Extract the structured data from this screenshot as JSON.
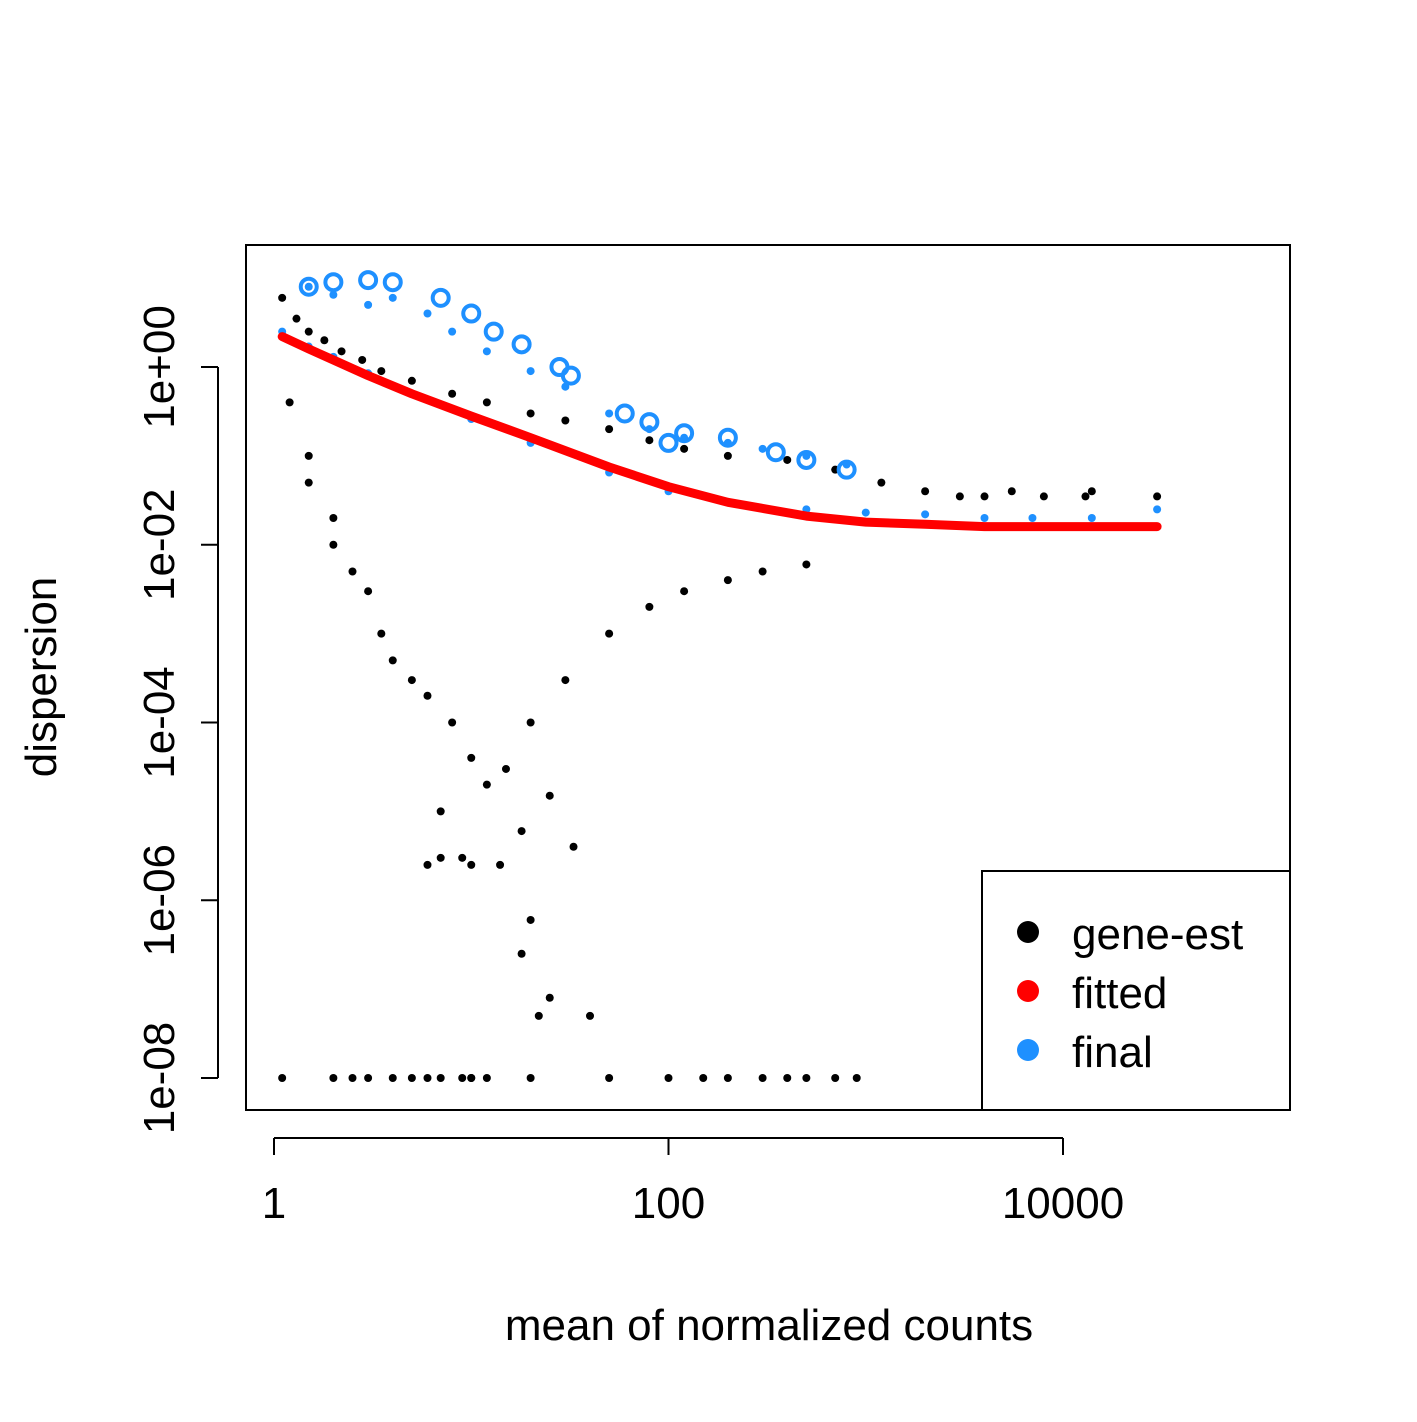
{
  "chart_data": {
    "type": "scatter",
    "title": "",
    "xlabel": "mean of normalized counts",
    "ylabel": "dispersion",
    "xscale": "log10",
    "yscale": "log10",
    "xlim": [
      0.7,
      100000
    ],
    "ylim": [
      2e-09,
      30
    ],
    "x_ticks": [
      {
        "value": 1,
        "label": "1"
      },
      {
        "value": 100,
        "label": "100"
      },
      {
        "value": 10000,
        "label": "10000"
      }
    ],
    "y_ticks": [
      {
        "value": 1e-08,
        "label": "1e-08"
      },
      {
        "value": 1e-06,
        "label": "1e-06"
      },
      {
        "value": 0.0001,
        "label": "1e-04"
      },
      {
        "value": 0.01,
        "label": "1e-02"
      },
      {
        "value": 1,
        "label": "1e+00"
      }
    ],
    "grid": false,
    "legend": {
      "position": "bottom-right",
      "entries": [
        {
          "label": "gene-est",
          "color": "#000000"
        },
        {
          "label": "fitted",
          "color": "#ff0000"
        },
        {
          "label": "final",
          "color": "#1e90ff"
        }
      ]
    },
    "series": [
      {
        "name": "gene-est",
        "color": "#000000",
        "points": [
          [
            1.1,
            6.0
          ],
          [
            1.3,
            3.5
          ],
          [
            1.5,
            2.5
          ],
          [
            1.8,
            2.0
          ],
          [
            2.2,
            1.5
          ],
          [
            2.8,
            1.2
          ],
          [
            3.5,
            0.9
          ],
          [
            5,
            0.7
          ],
          [
            8,
            0.5
          ],
          [
            12,
            0.4
          ],
          [
            20,
            0.3
          ],
          [
            30,
            0.25
          ],
          [
            50,
            0.2
          ],
          [
            80,
            0.15
          ],
          [
            120,
            0.12
          ],
          [
            200,
            0.1
          ],
          [
            400,
            0.09
          ],
          [
            700,
            0.07
          ],
          [
            1200,
            0.05
          ],
          [
            2000,
            0.04
          ],
          [
            3000,
            0.035
          ],
          [
            4000,
            0.035
          ],
          [
            5500,
            0.04
          ],
          [
            8000,
            0.035
          ],
          [
            13000,
            0.035
          ],
          [
            14000,
            0.04
          ],
          [
            30000,
            0.035
          ],
          [
            1.2,
            0.4
          ],
          [
            1.5,
            0.1
          ],
          [
            2.0,
            0.02
          ],
          [
            2.5,
            0.005
          ],
          [
            3.5,
            0.001
          ],
          [
            5,
            0.0003
          ],
          [
            8,
            0.0001
          ],
          [
            10,
            4e-05
          ],
          [
            15,
            3e-05
          ],
          [
            20,
            0.0001
          ],
          [
            30,
            0.0003
          ],
          [
            50,
            0.001
          ],
          [
            80,
            0.002
          ],
          [
            120,
            0.003
          ],
          [
            200,
            0.004
          ],
          [
            300,
            0.005
          ],
          [
            500,
            0.006
          ],
          [
            1.5,
            0.05
          ],
          [
            2.0,
            0.01
          ],
          [
            3,
            0.003
          ],
          [
            4,
            0.0005
          ],
          [
            6,
            0.0002
          ],
          [
            7,
            1e-05
          ],
          [
            9,
            3e-06
          ],
          [
            12,
            2e-05
          ],
          [
            18,
            6e-06
          ],
          [
            25,
            1.5e-05
          ],
          [
            33,
            4e-06
          ],
          [
            20,
            6e-07
          ],
          [
            22,
            5e-08
          ],
          [
            30,
            2e-09
          ],
          [
            6,
            2.5e-06
          ],
          [
            7,
            3e-06
          ],
          [
            10,
            2.5e-06
          ],
          [
            14,
            2.5e-06
          ],
          [
            18,
            2.5e-07
          ],
          [
            25,
            8e-08
          ],
          [
            40,
            5e-08
          ],
          [
            2.5,
            1e-08
          ],
          [
            3,
            1e-08
          ],
          [
            4,
            1e-08
          ],
          [
            6,
            1e-08
          ],
          [
            7,
            1e-08
          ],
          [
            9,
            1e-08
          ],
          [
            10,
            1e-08
          ],
          [
            12,
            1e-08
          ],
          [
            2.8,
            1.6e-09
          ],
          [
            4,
            1.6e-09
          ],
          [
            6,
            1.6e-09
          ],
          [
            8,
            1.6e-09
          ],
          [
            10,
            1.6e-09
          ],
          [
            15,
            1.6e-09
          ],
          [
            1.1,
            1e-08
          ],
          [
            2,
            1e-08
          ],
          [
            5,
            1e-08
          ],
          [
            10,
            1e-08
          ],
          [
            20,
            1e-08
          ],
          [
            50,
            1e-08
          ],
          [
            100,
            1e-08
          ],
          [
            150,
            1e-08
          ],
          [
            200,
            1e-08
          ],
          [
            300,
            1e-08
          ],
          [
            400,
            1e-08
          ],
          [
            500,
            1e-08
          ],
          [
            700,
            1e-08
          ],
          [
            900,
            1e-08
          ]
        ]
      },
      {
        "name": "fitted",
        "color": "#ff0000",
        "points": [
          [
            1.1,
            2.2
          ],
          [
            1.5,
            1.6
          ],
          [
            2,
            1.2
          ],
          [
            3,
            0.8
          ],
          [
            5,
            0.5
          ],
          [
            10,
            0.28
          ],
          [
            20,
            0.16
          ],
          [
            50,
            0.075
          ],
          [
            100,
            0.045
          ],
          [
            200,
            0.03
          ],
          [
            500,
            0.021
          ],
          [
            1000,
            0.018
          ],
          [
            2000,
            0.017
          ],
          [
            4000,
            0.016
          ],
          [
            8000,
            0.016
          ],
          [
            15000,
            0.016
          ],
          [
            30000,
            0.016
          ]
        ]
      },
      {
        "name": "final",
        "color": "#1e90ff",
        "points": [
          [
            1.1,
            2.5
          ],
          [
            1.5,
            1.7
          ],
          [
            2,
            1.3
          ],
          [
            3,
            0.85
          ],
          [
            5,
            0.5
          ],
          [
            10,
            0.26
          ],
          [
            20,
            0.14
          ],
          [
            50,
            0.065
          ],
          [
            100,
            0.04
          ],
          [
            200,
            0.03
          ],
          [
            500,
            0.025
          ],
          [
            1000,
            0.023
          ],
          [
            2000,
            0.022
          ],
          [
            4000,
            0.02
          ],
          [
            7000,
            0.02
          ],
          [
            14000,
            0.02
          ],
          [
            30000,
            0.025
          ],
          [
            1.5,
            8.0
          ],
          [
            2,
            6.5
          ],
          [
            3,
            5.0
          ],
          [
            4,
            6.0
          ],
          [
            6,
            4.0
          ],
          [
            8,
            2.5
          ],
          [
            12,
            1.5
          ],
          [
            20,
            0.9
          ],
          [
            30,
            0.6
          ],
          [
            50,
            0.3
          ],
          [
            80,
            0.2
          ],
          [
            120,
            0.16
          ],
          [
            200,
            0.14
          ],
          [
            300,
            0.12
          ],
          [
            500,
            0.1
          ],
          [
            800,
            0.08
          ]
        ],
        "outliers": [
          [
            1.5,
            8.0
          ],
          [
            2,
            9.0
          ],
          [
            3,
            9.5
          ],
          [
            4,
            9.0
          ],
          [
            7,
            6.0
          ],
          [
            10,
            4.0
          ],
          [
            13,
            2.5
          ],
          [
            18,
            1.8
          ],
          [
            28,
            1.0
          ],
          [
            32,
            0.8
          ],
          [
            60,
            0.3
          ],
          [
            80,
            0.24
          ],
          [
            100,
            0.14
          ],
          [
            120,
            0.18
          ],
          [
            200,
            0.16
          ],
          [
            350,
            0.11
          ],
          [
            500,
            0.09
          ],
          [
            800,
            0.07
          ]
        ]
      }
    ]
  }
}
